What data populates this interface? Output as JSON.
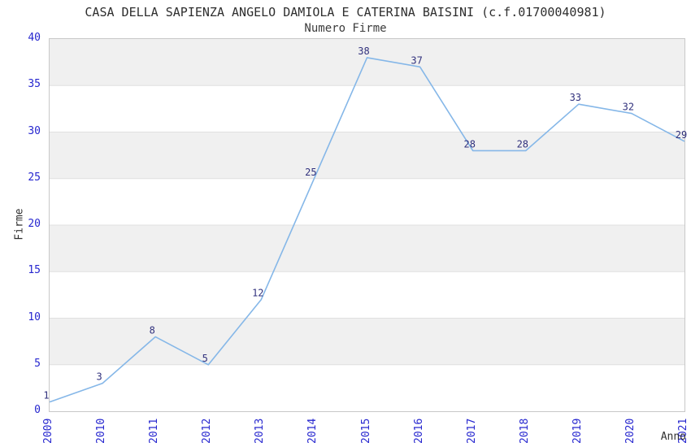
{
  "chart_data": {
    "type": "line",
    "title": "CASA DELLA SAPIENZA ANGELO DAMIOLA E CATERINA BAISINI (c.f.01700040981)",
    "subtitle": "Numero Firme",
    "xlabel": "Anno",
    "ylabel": "Firme",
    "categories": [
      "2009",
      "2010",
      "2011",
      "2012",
      "2013",
      "2014",
      "2015",
      "2016",
      "2017",
      "2018",
      "2019",
      "2020",
      "2021"
    ],
    "values": [
      1,
      3,
      8,
      5,
      12,
      25,
      38,
      37,
      28,
      28,
      33,
      32,
      29
    ],
    "point_labels": [
      "1",
      "3",
      "8",
      "5",
      "12",
      "25",
      "38",
      "37",
      "28",
      "28",
      "33",
      "32",
      "29"
    ],
    "ylim": [
      0,
      40
    ],
    "yticks": [
      0,
      5,
      10,
      15,
      20,
      25,
      30,
      35,
      40
    ],
    "grid": "alternating-horizontal-bands",
    "legend": "none",
    "markers": "none",
    "colors": {
      "line": "#85b7e8",
      "band_fill": "#f0f0f0",
      "grid_line": "#e0e0e0",
      "tick_text": "#2727cf",
      "point_label_text": "#31317d",
      "title_text": "#2e2e2e",
      "subtitle_text": "#3c3c3c",
      "axis_label_text": "#303030",
      "plot_border": "#c8c8c8",
      "background": "#ffffff"
    }
  }
}
